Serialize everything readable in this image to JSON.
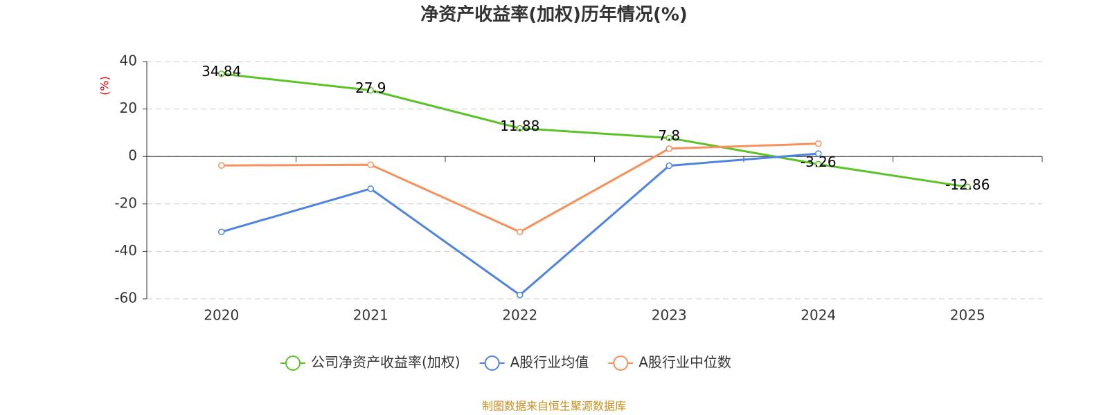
{
  "chart_data": {
    "type": "line",
    "title": "净资产收益率(加权)历年情况(%)",
    "y_label": "(%)",
    "categories": [
      "2020",
      "2021",
      "2022",
      "2023",
      "2024",
      "2025"
    ],
    "series": [
      {
        "name": "公司净资产收益率(加权)",
        "color": "#5bc228",
        "values": [
          34.84,
          27.9,
          11.88,
          7.8,
          -3.26,
          -12.86
        ],
        "show_labels": true
      },
      {
        "name": "A股行业均值",
        "color": "#4f83e0",
        "values": [
          -31.8,
          -13.6,
          -58.4,
          -3.9,
          1.2,
          null
        ]
      },
      {
        "name": "A股行业中位数",
        "color": "#f7905a",
        "values": [
          -3.8,
          -3.5,
          -31.8,
          3.3,
          5.4,
          null
        ]
      }
    ],
    "ylim": [
      -60,
      40
    ],
    "yticks": [
      -60,
      -40,
      -20,
      0,
      20,
      40
    ],
    "grid": true,
    "source": "制图数据来自恒生聚源数据库"
  }
}
